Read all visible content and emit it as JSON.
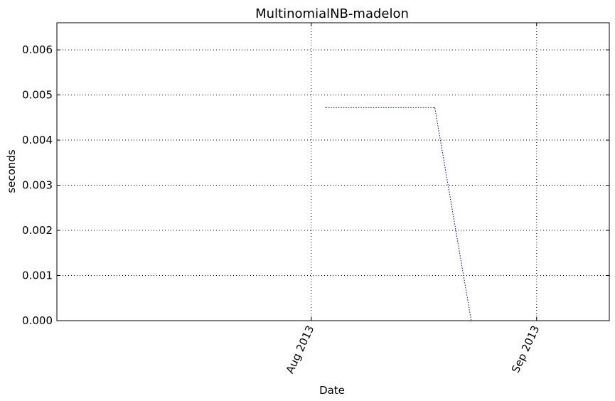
{
  "chart_data": {
    "type": "line",
    "title": "MultinomialNB-madelon",
    "xlabel": "Date",
    "ylabel": "seconds",
    "x_ticks": [
      "Aug 2013",
      "Sep 2013"
    ],
    "y_ticks": [
      "0.000",
      "0.001",
      "0.002",
      "0.003",
      "0.004",
      "0.005",
      "0.006"
    ],
    "ylim": [
      0,
      0.0066
    ],
    "xlim": [
      "2013-06-27",
      "2013-09-11"
    ],
    "grid": true,
    "series": [
      {
        "x": [
          "2013-08-03",
          "2013-08-18",
          "2013-08-23"
        ],
        "values": [
          0.00472,
          0.00472,
          0
        ],
        "color": "#0000ff",
        "style": "dotted"
      }
    ]
  }
}
